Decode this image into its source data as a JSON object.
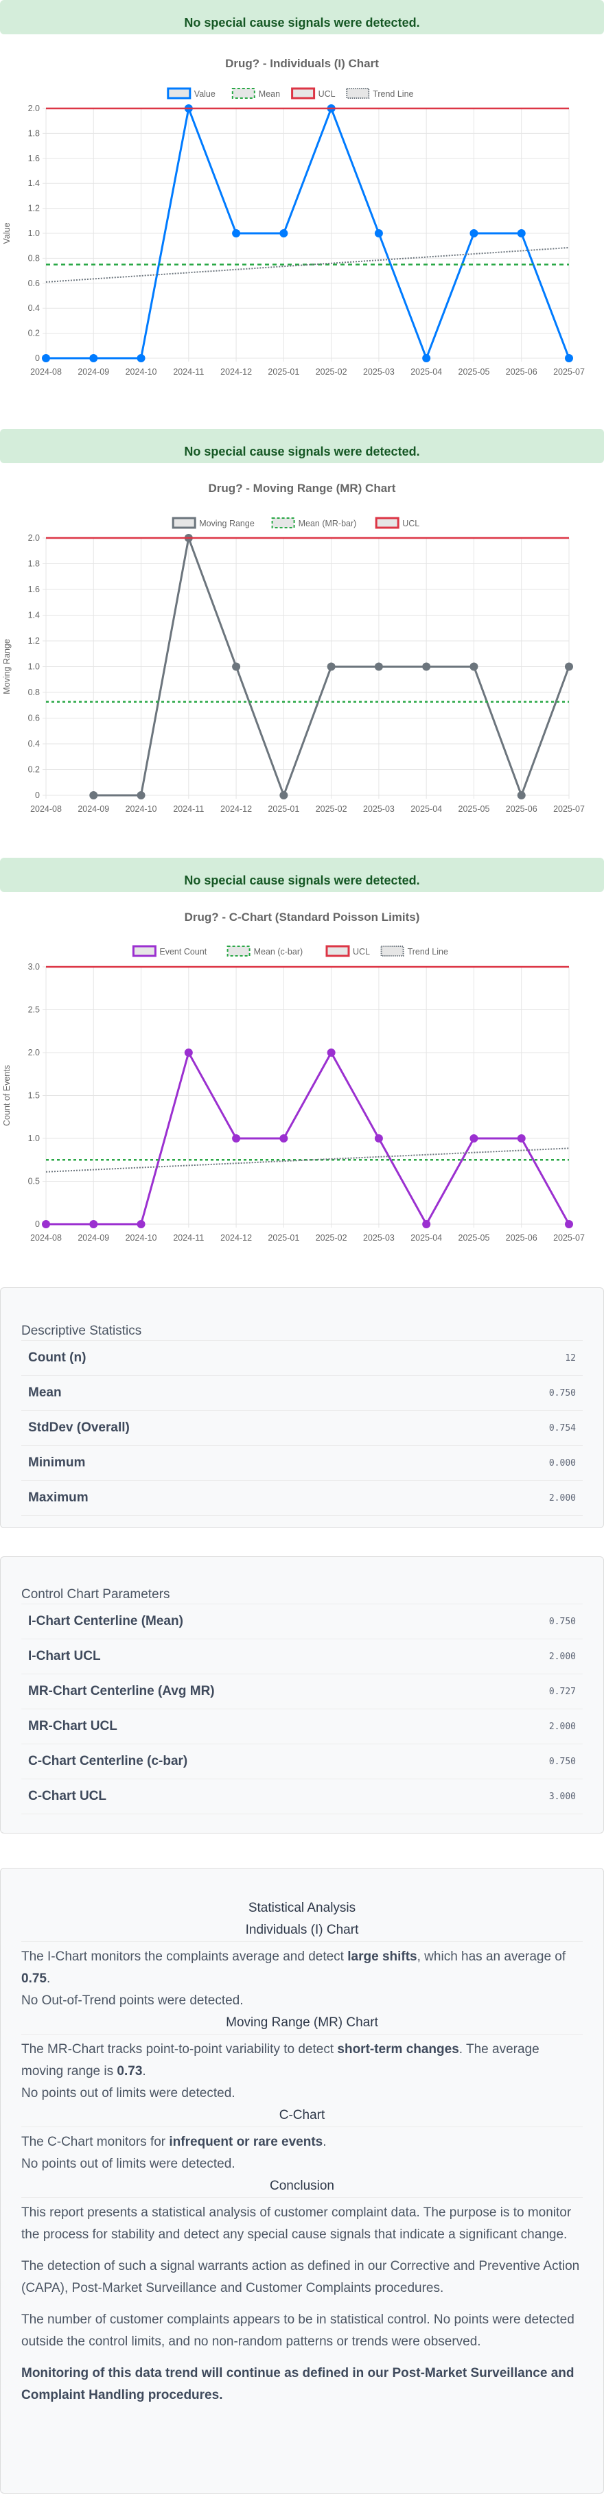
{
  "banners": {
    "i_chart": "No special cause signals were detected.",
    "mr_chart": "No special cause signals were detected.",
    "c_chart": "No special cause signals were detected."
  },
  "colors": {
    "banner_bg": "#d4edda",
    "banner_text": "#155724",
    "value_line": "#007bff",
    "mr_line": "#6c757d",
    "count_line": "#9b30d0",
    "mean_line": "#28a745",
    "ucl_line": "#dc3545",
    "trend_line": "#6c757d",
    "grid": "#e5e5e5"
  },
  "chart_data": [
    {
      "type": "line",
      "title": "Drug? - Individuals (I) Chart",
      "xlabel": "",
      "ylabel": "Value",
      "ylim": [
        0,
        2.0
      ],
      "yticks": [
        0,
        0.2,
        0.4,
        0.6,
        0.8,
        1.0,
        1.2,
        1.4,
        1.6,
        1.8,
        2.0
      ],
      "categories": [
        "2024-08",
        "2024-09",
        "2024-10",
        "2024-11",
        "2024-12",
        "2025-01",
        "2025-02",
        "2025-03",
        "2025-04",
        "2025-05",
        "2025-06",
        "2025-07"
      ],
      "legend": [
        "Value",
        "Mean",
        "UCL",
        "Trend Line"
      ],
      "legend_position": "top",
      "grid": true,
      "series": [
        {
          "name": "Value",
          "values": [
            0,
            0,
            0,
            2,
            1,
            1,
            2,
            1,
            0,
            1,
            1,
            0
          ]
        },
        {
          "name": "Mean",
          "values": [
            0.75,
            0.75,
            0.75,
            0.75,
            0.75,
            0.75,
            0.75,
            0.75,
            0.75,
            0.75,
            0.75,
            0.75
          ]
        },
        {
          "name": "UCL",
          "values": [
            2,
            2,
            2,
            2,
            2,
            2,
            2,
            2,
            2,
            2,
            2,
            2
          ]
        },
        {
          "name": "Trend Line",
          "values": [
            0.61,
            0.635,
            0.66,
            0.685,
            0.71,
            0.735,
            0.76,
            0.785,
            0.81,
            0.835,
            0.86,
            0.885
          ]
        }
      ]
    },
    {
      "type": "line",
      "title": "Drug? - Moving Range (MR) Chart",
      "xlabel": "",
      "ylabel": "Moving Range",
      "ylim": [
        0,
        2.0
      ],
      "yticks": [
        0,
        0.2,
        0.4,
        0.6,
        0.8,
        1.0,
        1.2,
        1.4,
        1.6,
        1.8,
        2.0
      ],
      "categories": [
        "2024-08",
        "2024-09",
        "2024-10",
        "2024-11",
        "2024-12",
        "2025-01",
        "2025-02",
        "2025-03",
        "2025-04",
        "2025-05",
        "2025-06",
        "2025-07"
      ],
      "legend": [
        "Moving Range",
        "Mean (MR-bar)",
        "UCL"
      ],
      "legend_position": "top",
      "grid": true,
      "series": [
        {
          "name": "Moving Range",
          "values": [
            null,
            0,
            0,
            2,
            1,
            0,
            1,
            1,
            1,
            1,
            0,
            1
          ]
        },
        {
          "name": "Mean (MR-bar)",
          "values": [
            0.727,
            0.727,
            0.727,
            0.727,
            0.727,
            0.727,
            0.727,
            0.727,
            0.727,
            0.727,
            0.727,
            0.727
          ]
        },
        {
          "name": "UCL",
          "values": [
            2,
            2,
            2,
            2,
            2,
            2,
            2,
            2,
            2,
            2,
            2,
            2
          ]
        }
      ]
    },
    {
      "type": "line",
      "title": "Drug? - C-Chart (Standard Poisson Limits)",
      "xlabel": "",
      "ylabel": "Count of Events",
      "ylim": [
        0,
        3.0
      ],
      "yticks": [
        0,
        0.5,
        1.0,
        1.5,
        2.0,
        2.5,
        3.0
      ],
      "categories": [
        "2024-08",
        "2024-09",
        "2024-10",
        "2024-11",
        "2024-12",
        "2025-01",
        "2025-02",
        "2025-03",
        "2025-04",
        "2025-05",
        "2025-06",
        "2025-07"
      ],
      "legend": [
        "Event Count",
        "Mean (c-bar)",
        "UCL",
        "Trend Line"
      ],
      "legend_position": "top",
      "grid": true,
      "series": [
        {
          "name": "Event Count",
          "values": [
            0,
            0,
            0,
            2,
            1,
            1,
            2,
            1,
            0,
            1,
            1,
            0
          ]
        },
        {
          "name": "Mean (c-bar)",
          "values": [
            0.75,
            0.75,
            0.75,
            0.75,
            0.75,
            0.75,
            0.75,
            0.75,
            0.75,
            0.75,
            0.75,
            0.75
          ]
        },
        {
          "name": "UCL",
          "values": [
            3,
            3,
            3,
            3,
            3,
            3,
            3,
            3,
            3,
            3,
            3,
            3
          ]
        },
        {
          "name": "Trend Line",
          "values": [
            0.61,
            0.635,
            0.66,
            0.685,
            0.71,
            0.735,
            0.76,
            0.785,
            0.81,
            0.835,
            0.86,
            0.885
          ]
        }
      ]
    }
  ],
  "descriptive_statistics": {
    "title": "Descriptive Statistics",
    "rows": [
      {
        "label": "Count (n)",
        "value": "12"
      },
      {
        "label": "Mean",
        "value": "0.750"
      },
      {
        "label": "StdDev (Overall)",
        "value": "0.754"
      },
      {
        "label": "Minimum",
        "value": "0.000"
      },
      {
        "label": "Maximum",
        "value": "2.000"
      }
    ]
  },
  "control_chart_parameters": {
    "title": "Control Chart Parameters",
    "rows": [
      {
        "label": "I-Chart Centerline (Mean)",
        "value": "0.750"
      },
      {
        "label": "I-Chart UCL",
        "value": "2.000"
      },
      {
        "label": "MR-Chart Centerline (Avg MR)",
        "value": "0.727"
      },
      {
        "label": "MR-Chart UCL",
        "value": "2.000"
      },
      {
        "label": "C-Chart Centerline (c-bar)",
        "value": "0.750"
      },
      {
        "label": "C-Chart UCL",
        "value": "3.000"
      }
    ]
  },
  "statistical_analysis": {
    "title": "Statistical Analysis",
    "i_chart": {
      "heading": "Individuals (I) Chart",
      "p1_a": "The I-Chart monitors the complaints average and detect ",
      "p1_b": "large shifts",
      "p1_c": ", which has an average of ",
      "p1_d": "0.75",
      "p1_e": ".",
      "p2": "No Out-of-Trend points were detected."
    },
    "mr_chart": {
      "heading": "Moving Range (MR) Chart",
      "p1_a": "The MR-Chart tracks point-to-point variability to detect ",
      "p1_b": "short-term changes",
      "p1_c": ". The average moving range is ",
      "p1_d": "0.73",
      "p1_e": ".",
      "p2": "No points out of limits were detected."
    },
    "c_chart": {
      "heading": "C-Chart",
      "p1_a": "The C-Chart monitors for ",
      "p1_b": "infrequent or rare events",
      "p1_c": ".",
      "p2": "No points out of limits were detected."
    },
    "conclusion": {
      "heading": "Conclusion",
      "p1": "This report presents a statistical analysis of customer complaint data. The purpose is to monitor the process for stability and detect any special cause signals that indicate a significant change.",
      "p2": "The detection of such a signal warrants action as defined in our Corrective and Preventive Action (CAPA), Post-Market Surveillance and Customer Complaints procedures.",
      "p3": "The number of customer complaints appears to be in statistical control. No points were detected outside the control limits, and no non-random patterns or trends were observed.",
      "p4": "Monitoring of this data trend will continue as defined in our Post-Market Surveillance and Complaint Handling procedures."
    }
  }
}
